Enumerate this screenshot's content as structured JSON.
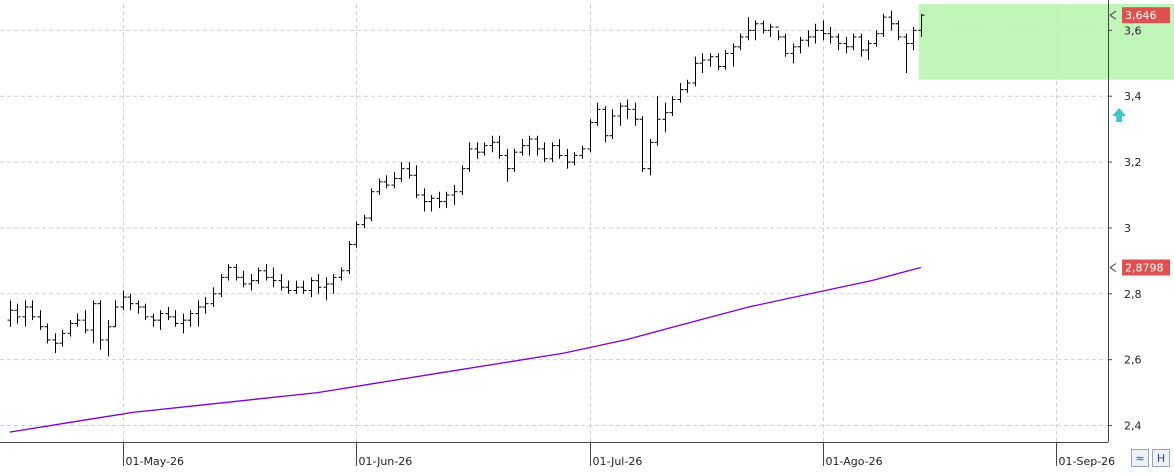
{
  "chart_data": {
    "type": "bar",
    "style": "ohlc",
    "ylim": [
      2.35,
      3.68
    ],
    "y_ticks": [
      "2,4",
      "2,6",
      "2,8",
      "3",
      "3,2",
      "3,4",
      "3,6"
    ],
    "y_tick_values": [
      2.4,
      2.6,
      2.8,
      3.0,
      3.2,
      3.4,
      3.6
    ],
    "x_ticks": [
      "01-May-26",
      "01-Jun-26",
      "01-Jul-26",
      "01-Ago-26",
      "01-Sep-26"
    ],
    "x_tick_index": [
      15,
      46,
      77,
      108,
      139
    ],
    "grid": true,
    "last_price_label": "3,646",
    "last_price": 3.646,
    "ma_label": "2,8798",
    "ma_value": 2.8798,
    "colors": {
      "bars": "#000000",
      "ma": "#7a00d6",
      "highlight": "#b9f5b0",
      "price_tag": "#e05050",
      "arrow": "#3cc8c8",
      "grid": "#d0d0d0"
    },
    "highlight_range": {
      "start_index": 121,
      "end_index": 155,
      "low": 3.45,
      "high": 3.68
    },
    "arrow_marker": {
      "index": 148,
      "value": 3.34,
      "direction": "up",
      "icon": "up-arrow-icon"
    },
    "ohlc": [
      [
        2.72,
        2.78,
        2.7,
        2.75
      ],
      [
        2.75,
        2.77,
        2.71,
        2.73
      ],
      [
        2.73,
        2.78,
        2.7,
        2.76
      ],
      [
        2.76,
        2.78,
        2.72,
        2.73
      ],
      [
        2.73,
        2.75,
        2.69,
        2.7
      ],
      [
        2.7,
        2.71,
        2.65,
        2.66
      ],
      [
        2.66,
        2.68,
        2.62,
        2.65
      ],
      [
        2.65,
        2.69,
        2.64,
        2.68
      ],
      [
        2.68,
        2.72,
        2.67,
        2.71
      ],
      [
        2.71,
        2.74,
        2.7,
        2.72
      ],
      [
        2.72,
        2.75,
        2.68,
        2.69
      ],
      [
        2.69,
        2.78,
        2.65,
        2.77
      ],
      [
        2.77,
        2.78,
        2.63,
        2.66
      ],
      [
        2.66,
        2.72,
        2.61,
        2.7
      ],
      [
        2.7,
        2.78,
        2.7,
        2.76
      ],
      [
        2.76,
        2.81,
        2.75,
        2.79
      ],
      [
        2.79,
        2.8,
        2.75,
        2.77
      ],
      [
        2.77,
        2.78,
        2.74,
        2.76
      ],
      [
        2.76,
        2.77,
        2.72,
        2.73
      ],
      [
        2.73,
        2.74,
        2.7,
        2.72
      ],
      [
        2.72,
        2.75,
        2.69,
        2.74
      ],
      [
        2.74,
        2.76,
        2.72,
        2.73
      ],
      [
        2.73,
        2.75,
        2.7,
        2.71
      ],
      [
        2.71,
        2.74,
        2.68,
        2.72
      ],
      [
        2.72,
        2.75,
        2.7,
        2.74
      ],
      [
        2.74,
        2.78,
        2.7,
        2.76
      ],
      [
        2.76,
        2.79,
        2.74,
        2.77
      ],
      [
        2.77,
        2.82,
        2.76,
        2.8
      ],
      [
        2.8,
        2.86,
        2.79,
        2.85
      ],
      [
        2.85,
        2.89,
        2.84,
        2.88
      ],
      [
        2.88,
        2.89,
        2.84,
        2.85
      ],
      [
        2.85,
        2.87,
        2.82,
        2.83
      ],
      [
        2.83,
        2.86,
        2.81,
        2.84
      ],
      [
        2.84,
        2.88,
        2.83,
        2.87
      ],
      [
        2.87,
        2.89,
        2.84,
        2.85
      ],
      [
        2.85,
        2.88,
        2.82,
        2.84
      ],
      [
        2.84,
        2.86,
        2.81,
        2.82
      ],
      [
        2.82,
        2.84,
        2.8,
        2.81
      ],
      [
        2.81,
        2.84,
        2.8,
        2.82
      ],
      [
        2.82,
        2.84,
        2.8,
        2.81
      ],
      [
        2.81,
        2.85,
        2.79,
        2.84
      ],
      [
        2.84,
        2.86,
        2.8,
        2.82
      ],
      [
        2.82,
        2.85,
        2.78,
        2.83
      ],
      [
        2.83,
        2.86,
        2.8,
        2.85
      ],
      [
        2.85,
        2.88,
        2.84,
        2.87
      ],
      [
        2.87,
        2.96,
        2.86,
        2.95
      ],
      [
        2.95,
        3.02,
        2.94,
        3.01
      ],
      [
        3.01,
        3.04,
        3.0,
        3.03
      ],
      [
        3.03,
        3.12,
        3.02,
        3.11
      ],
      [
        3.11,
        3.15,
        3.1,
        3.14
      ],
      [
        3.14,
        3.16,
        3.12,
        3.13
      ],
      [
        3.13,
        3.17,
        3.12,
        3.15
      ],
      [
        3.15,
        3.2,
        3.14,
        3.18
      ],
      [
        3.18,
        3.2,
        3.15,
        3.16
      ],
      [
        3.16,
        3.19,
        3.09,
        3.1
      ],
      [
        3.1,
        3.12,
        3.05,
        3.08
      ],
      [
        3.08,
        3.1,
        3.05,
        3.09
      ],
      [
        3.09,
        3.11,
        3.06,
        3.08
      ],
      [
        3.08,
        3.11,
        3.06,
        3.1
      ],
      [
        3.1,
        3.13,
        3.07,
        3.11
      ],
      [
        3.11,
        3.19,
        3.1,
        3.18
      ],
      [
        3.18,
        3.26,
        3.17,
        3.24
      ],
      [
        3.24,
        3.26,
        3.21,
        3.23
      ],
      [
        3.23,
        3.26,
        3.22,
        3.25
      ],
      [
        3.25,
        3.28,
        3.23,
        3.26
      ],
      [
        3.26,
        3.28,
        3.21,
        3.22
      ],
      [
        3.22,
        3.24,
        3.14,
        3.18
      ],
      [
        3.18,
        3.24,
        3.17,
        3.23
      ],
      [
        3.23,
        3.27,
        3.22,
        3.25
      ],
      [
        3.25,
        3.28,
        3.22,
        3.27
      ],
      [
        3.27,
        3.28,
        3.22,
        3.24
      ],
      [
        3.24,
        3.26,
        3.2,
        3.21
      ],
      [
        3.21,
        3.26,
        3.2,
        3.25
      ],
      [
        3.25,
        3.27,
        3.21,
        3.22
      ],
      [
        3.22,
        3.24,
        3.18,
        3.2
      ],
      [
        3.2,
        3.23,
        3.19,
        3.22
      ],
      [
        3.22,
        3.25,
        3.21,
        3.24
      ],
      [
        3.24,
        3.33,
        3.23,
        3.32
      ],
      [
        3.32,
        3.38,
        3.31,
        3.36
      ],
      [
        3.36,
        3.37,
        3.26,
        3.28
      ],
      [
        3.28,
        3.36,
        3.27,
        3.34
      ],
      [
        3.34,
        3.38,
        3.31,
        3.37
      ],
      [
        3.37,
        3.39,
        3.33,
        3.36
      ],
      [
        3.36,
        3.38,
        3.31,
        3.33
      ],
      [
        3.33,
        3.34,
        3.17,
        3.18
      ],
      [
        3.18,
        3.27,
        3.16,
        3.26
      ],
      [
        3.26,
        3.4,
        3.25,
        3.33
      ],
      [
        3.33,
        3.38,
        3.29,
        3.35
      ],
      [
        3.35,
        3.4,
        3.34,
        3.39
      ],
      [
        3.39,
        3.44,
        3.38,
        3.42
      ],
      [
        3.42,
        3.45,
        3.41,
        3.44
      ],
      [
        3.44,
        3.52,
        3.43,
        3.5
      ],
      [
        3.5,
        3.53,
        3.47,
        3.51
      ],
      [
        3.51,
        3.53,
        3.49,
        3.52
      ],
      [
        3.52,
        3.53,
        3.48,
        3.49
      ],
      [
        3.49,
        3.54,
        3.48,
        3.53
      ],
      [
        3.53,
        3.56,
        3.49,
        3.55
      ],
      [
        3.55,
        3.59,
        3.54,
        3.58
      ],
      [
        3.58,
        3.64,
        3.57,
        3.6
      ],
      [
        3.6,
        3.63,
        3.57,
        3.62
      ],
      [
        3.62,
        3.63,
        3.59,
        3.6
      ],
      [
        3.6,
        3.62,
        3.58,
        3.61
      ],
      [
        3.61,
        3.6,
        3.57,
        3.58
      ],
      [
        3.58,
        3.59,
        3.52,
        3.53
      ],
      [
        3.53,
        3.56,
        3.5,
        3.55
      ],
      [
        3.55,
        3.58,
        3.53,
        3.57
      ],
      [
        3.57,
        3.6,
        3.55,
        3.58
      ],
      [
        3.58,
        3.62,
        3.56,
        3.6
      ],
      [
        3.6,
        3.63,
        3.57,
        3.59
      ],
      [
        3.59,
        3.61,
        3.56,
        3.58
      ],
      [
        3.58,
        3.59,
        3.54,
        3.56
      ],
      [
        3.56,
        3.58,
        3.53,
        3.55
      ],
      [
        3.55,
        3.59,
        3.54,
        3.58
      ],
      [
        3.58,
        3.59,
        3.52,
        3.54
      ],
      [
        3.54,
        3.57,
        3.51,
        3.56
      ],
      [
        3.56,
        3.6,
        3.55,
        3.59
      ],
      [
        3.59,
        3.65,
        3.58,
        3.64
      ],
      [
        3.64,
        3.66,
        3.6,
        3.62
      ],
      [
        3.62,
        3.63,
        3.57,
        3.58
      ],
      [
        3.58,
        3.59,
        3.47,
        3.56
      ],
      [
        3.56,
        3.61,
        3.54,
        3.6
      ],
      [
        3.6,
        3.65,
        3.58,
        3.646
      ]
    ],
    "ma_points": [
      [
        0,
        2.38
      ],
      [
        10,
        2.41
      ],
      [
        20,
        2.44
      ],
      [
        30,
        2.46
      ],
      [
        40,
        2.48
      ],
      [
        50,
        2.5
      ],
      [
        60,
        2.53
      ],
      [
        70,
        2.56
      ],
      [
        80,
        2.59
      ],
      [
        90,
        2.62
      ],
      [
        100,
        2.66
      ],
      [
        110,
        2.71
      ],
      [
        120,
        2.76
      ],
      [
        130,
        2.8
      ],
      [
        140,
        2.84
      ],
      [
        148,
        2.8798
      ]
    ]
  },
  "toolbar": {
    "buttons": [
      {
        "label": "≈",
        "icon": "wave-icon"
      },
      {
        "label": "H",
        "icon": "h-icon"
      }
    ]
  }
}
